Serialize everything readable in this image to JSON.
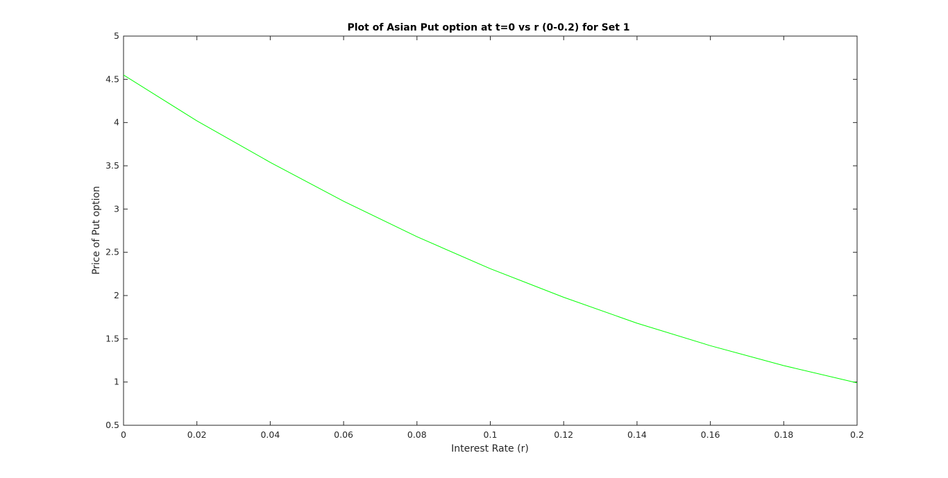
{
  "chart_data": {
    "type": "line",
    "title": "Plot of Asian Put option at t=0 vs r (0-0.2) for Set 1",
    "xlabel": "Interest Rate (r)",
    "ylabel": "Price of Put option",
    "xlim": [
      0,
      0.2
    ],
    "ylim": [
      0.5,
      5
    ],
    "x_ticks": [
      "0",
      "0.02",
      "0.04",
      "0.06",
      "0.08",
      "0.1",
      "0.12",
      "0.14",
      "0.16",
      "0.18",
      "0.2"
    ],
    "y_ticks": [
      "0.5",
      "1",
      "1.5",
      "2",
      "2.5",
      "3",
      "3.5",
      "4",
      "4.5",
      "5"
    ],
    "grid": false,
    "series": [
      {
        "color": "#00ff00",
        "x": [
          0,
          0.02,
          0.04,
          0.06,
          0.08,
          0.1,
          0.12,
          0.14,
          0.16,
          0.18,
          0.2
        ],
        "y": [
          4.55,
          4.02,
          3.54,
          3.09,
          2.68,
          2.31,
          1.98,
          1.68,
          1.42,
          1.19,
          0.99
        ]
      }
    ]
  }
}
